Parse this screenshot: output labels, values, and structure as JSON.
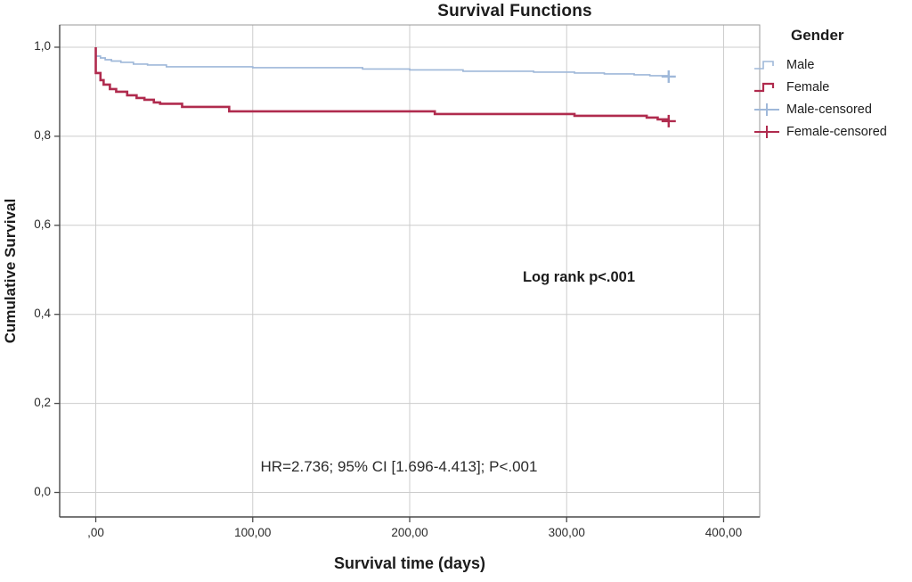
{
  "legend": {
    "title": "Gender",
    "items": [
      {
        "label": "Male",
        "glyph": "step-icon",
        "type": "step",
        "color": "#9FB8D9",
        "stroke": 1.6
      },
      {
        "label": "Female",
        "glyph": "step-icon",
        "type": "step",
        "color": "#B02B4E",
        "stroke": 2.2
      },
      {
        "label": "Male-censored",
        "glyph": "plus-icon",
        "type": "plus",
        "color": "#9FB8D9",
        "stroke": 2.0
      },
      {
        "label": "Female-censored",
        "glyph": "plus-icon",
        "type": "plus",
        "color": "#B02B4E",
        "stroke": 2.0
      }
    ]
  },
  "chart_data": {
    "type": "line",
    "subtype": "kaplan-meier-step-survival",
    "title": "Survival Functions",
    "xlabel": "Survival time (days)",
    "ylabel": "Cumulative Survival",
    "xlim": [
      -23,
      423
    ],
    "ylim": [
      -0.055,
      1.05
    ],
    "grid": true,
    "legend_position": "right",
    "x_ticks": {
      "values": [
        0,
        100,
        200,
        300,
        400
      ],
      "labels": [
        ",00",
        "100,00",
        "200,00",
        "300,00",
        "400,00"
      ]
    },
    "y_ticks": {
      "values": [
        0.0,
        0.2,
        0.4,
        0.6,
        0.8,
        1.0
      ],
      "labels": [
        "0,0",
        "0,2",
        "0,4",
        "0,6",
        "0,8",
        "1,0"
      ]
    },
    "series": [
      {
        "name": "Male",
        "color": "#9FB8D9",
        "width": 1.7,
        "points": [
          [
            0,
            1.0
          ],
          [
            0,
            0.98
          ],
          [
            3,
            0.976
          ],
          [
            6,
            0.972
          ],
          [
            10,
            0.969
          ],
          [
            16,
            0.966
          ],
          [
            24,
            0.962
          ],
          [
            33,
            0.96
          ],
          [
            45,
            0.956
          ],
          [
            100,
            0.954
          ],
          [
            170,
            0.951
          ],
          [
            200,
            0.949
          ],
          [
            234,
            0.946
          ],
          [
            279,
            0.944
          ],
          [
            305,
            0.942
          ],
          [
            324,
            0.94
          ],
          [
            343,
            0.938
          ],
          [
            353,
            0.936
          ],
          [
            365,
            0.934
          ]
        ],
        "censored": [
          [
            365,
            0.934
          ]
        ]
      },
      {
        "name": "Female",
        "color": "#B02B4E",
        "width": 2.6,
        "points": [
          [
            0,
            1.0
          ],
          [
            0,
            0.942
          ],
          [
            3,
            0.926
          ],
          [
            5,
            0.916
          ],
          [
            9,
            0.906
          ],
          [
            13,
            0.9
          ],
          [
            20,
            0.892
          ],
          [
            26,
            0.886
          ],
          [
            31,
            0.882
          ],
          [
            37,
            0.876
          ],
          [
            41,
            0.873
          ],
          [
            55,
            0.866
          ],
          [
            85,
            0.856
          ],
          [
            216,
            0.85
          ],
          [
            305,
            0.846
          ],
          [
            351,
            0.842
          ],
          [
            358,
            0.838
          ],
          [
            365,
            0.834
          ]
        ],
        "censored": [
          [
            365,
            0.834
          ]
        ]
      }
    ],
    "annotations": [
      {
        "text": "Log rank p<.001",
        "x": 308,
        "y": 0.48,
        "bold": true
      },
      {
        "text": "HR=2.736; 95% CI [1.696-4.413]; P<.001",
        "x": 193,
        "y": 0.056,
        "bold": false
      }
    ]
  }
}
